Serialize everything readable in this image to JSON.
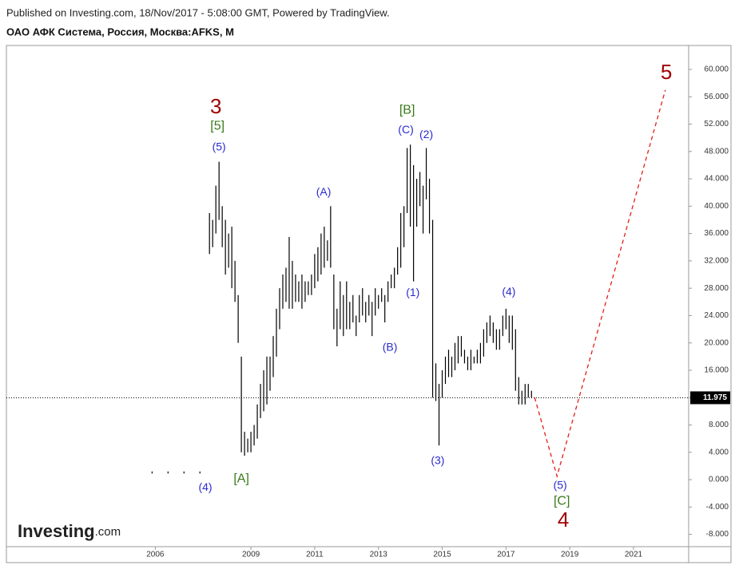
{
  "header": {
    "published": "Published on Investing.com, 18/Nov/2017 - 5:08:00 GMT, Powered by TradingView.",
    "symbol": "ОАО АФК Система, Россия, Москва:AFKS, M"
  },
  "logo": {
    "name": "Investing",
    "suffix": ".com"
  },
  "chart_data": {
    "type": "range_bar",
    "color": "#000000",
    "x": [
      2005.9,
      2006.4,
      2006.9,
      2007.4,
      2007.7,
      2007.8,
      2007.9,
      2008.0,
      2008.1,
      2008.2,
      2008.3,
      2008.4,
      2008.5,
      2008.6,
      2008.7,
      2008.8,
      2008.9,
      2009.0,
      2009.1,
      2009.2,
      2009.3,
      2009.4,
      2009.5,
      2009.6,
      2009.7,
      2009.8,
      2009.9,
      2010.0,
      2010.1,
      2010.2,
      2010.3,
      2010.4,
      2010.5,
      2010.6,
      2010.7,
      2010.8,
      2010.9,
      2011.0,
      2011.1,
      2011.2,
      2011.3,
      2011.4,
      2011.5,
      2011.6,
      2011.7,
      2011.8,
      2011.9,
      2012.0,
      2012.1,
      2012.2,
      2012.3,
      2012.4,
      2012.5,
      2012.6,
      2012.7,
      2012.8,
      2012.9,
      2013.0,
      2013.1,
      2013.2,
      2013.3,
      2013.4,
      2013.5,
      2013.6,
      2013.7,
      2013.8,
      2013.9,
      2014.0,
      2014.1,
      2014.2,
      2014.3,
      2014.4,
      2014.5,
      2014.6,
      2014.7,
      2014.8,
      2014.9,
      2015.0,
      2015.1,
      2015.2,
      2015.3,
      2015.4,
      2015.5,
      2015.6,
      2015.7,
      2015.8,
      2015.9,
      2016.0,
      2016.1,
      2016.2,
      2016.3,
      2016.4,
      2016.5,
      2016.6,
      2016.7,
      2016.8,
      2016.9,
      2017.0,
      2017.1,
      2017.2,
      2017.3,
      2017.4,
      2017.5,
      2017.6,
      2017.7,
      2017.8
    ],
    "high": [
      1.2,
      1.2,
      1.2,
      1.2,
      39,
      38,
      43,
      46.5,
      40,
      38,
      36,
      37,
      32,
      27,
      18,
      7,
      6,
      7,
      8,
      11,
      14,
      16,
      18,
      18,
      21,
      25,
      28,
      30,
      31,
      35.5,
      32,
      30,
      29,
      30,
      29,
      29,
      30,
      33,
      34,
      36,
      37,
      35,
      40,
      30,
      25,
      29,
      27,
      29,
      26,
      27,
      24,
      27,
      28,
      26,
      27,
      26,
      28,
      27,
      28,
      27,
      29,
      30,
      31,
      34,
      39,
      40,
      48.5,
      49,
      46,
      44,
      45,
      43,
      48.5,
      44,
      38,
      17,
      14,
      16,
      18,
      19,
      18,
      20,
      21,
      21,
      19,
      18,
      19,
      18,
      19,
      20,
      22,
      23,
      24,
      23,
      22,
      22,
      24,
      25,
      24,
      24,
      22,
      15,
      13,
      14,
      14,
      13
    ],
    "low": [
      0.9,
      0.9,
      0.9,
      0.9,
      33,
      34,
      36,
      38,
      34,
      30,
      31,
      28,
      26,
      20,
      4,
      3.5,
      4,
      4,
      5,
      6,
      9,
      10,
      11,
      13,
      15,
      18,
      22,
      25,
      26,
      25,
      25,
      26,
      26,
      25,
      26,
      27,
      27,
      28,
      29,
      30,
      31,
      32,
      31,
      22,
      19.5,
      22,
      21,
      22,
      22,
      23,
      21,
      23,
      24,
      23,
      24,
      21,
      24,
      25,
      26,
      23,
      26,
      28,
      28,
      30,
      31,
      34,
      39,
      37,
      29,
      37,
      40,
      36,
      41,
      36,
      12,
      11.5,
      5,
      12,
      14,
      15,
      15,
      16,
      17,
      18,
      17,
      16,
      16,
      17,
      17,
      17,
      18,
      20,
      21,
      20,
      19,
      19,
      21,
      22,
      20,
      19,
      13,
      11,
      11,
      11,
      12,
      12
    ],
    "forecast": {
      "x": [
        2017.9,
        2018.6,
        2022.0
      ],
      "values": [
        12,
        0.5,
        57
      ],
      "color": "#e0201b"
    },
    "last_price": {
      "value": 11.975,
      "label": "11.975"
    },
    "xlim": [
      2001.33,
      2022.73
    ],
    "ylim": [
      -9.8,
      63.5
    ],
    "xticks": [
      2006,
      2009,
      2011,
      2013,
      2015,
      2017,
      2019,
      2021
    ],
    "yticks": [
      {
        "value": -8,
        "label": "-8.000"
      },
      {
        "value": -4,
        "label": "-4.000"
      },
      {
        "value": 0,
        "label": "0.000"
      },
      {
        "value": 4,
        "label": "4.000"
      },
      {
        "value": 8,
        "label": "8.000"
      },
      {
        "value": 12,
        "label": "12.000"
      },
      {
        "value": 16,
        "label": "16.000"
      },
      {
        "value": 20,
        "label": "20.000"
      },
      {
        "value": 24,
        "label": "24.000"
      },
      {
        "value": 28,
        "label": "28.000"
      },
      {
        "value": 32,
        "label": "32.000"
      },
      {
        "value": 36,
        "label": "36.000"
      },
      {
        "value": 40,
        "label": "40.000"
      },
      {
        "value": 44,
        "label": "44.000"
      },
      {
        "value": 48,
        "label": "48.000"
      },
      {
        "value": 52,
        "label": "52.000"
      },
      {
        "value": 56,
        "label": "56.000"
      },
      {
        "value": 60,
        "label": "60.000"
      }
    ],
    "annotations": [
      {
        "text": "3",
        "x": 2007.9,
        "y": 54.4,
        "color": "#a00000"
      },
      {
        "text": "[5]",
        "x": 2007.95,
        "y": 51.7,
        "color": "#3a7a1a"
      },
      {
        "text": "(5)",
        "x": 2008.0,
        "y": 48.6,
        "color": "#2b2bd0"
      },
      {
        "text": "(4)",
        "x": 2007.57,
        "y": -1.2,
        "color": "#2b2bd0"
      },
      {
        "text": "[A]",
        "x": 2008.7,
        "y": 0.1,
        "color": "#3a7a1a"
      },
      {
        "text": "(A)",
        "x": 2011.28,
        "y": 42.0,
        "color": "#2b2bd0"
      },
      {
        "text": "(B)",
        "x": 2013.36,
        "y": 19.3,
        "color": "#2b2bd0"
      },
      {
        "text": "[B]",
        "x": 2013.9,
        "y": 54.0,
        "color": "#3a7a1a"
      },
      {
        "text": "(C)",
        "x": 2013.86,
        "y": 51.1,
        "color": "#2b2bd0"
      },
      {
        "text": "(2)",
        "x": 2014.5,
        "y": 50.4,
        "color": "#2b2bd0"
      },
      {
        "text": "(1)",
        "x": 2014.08,
        "y": 27.3,
        "color": "#2b2bd0"
      },
      {
        "text": "(3)",
        "x": 2014.86,
        "y": 2.7,
        "color": "#2b2bd0"
      },
      {
        "text": "(4)",
        "x": 2017.09,
        "y": 27.4,
        "color": "#2b2bd0"
      },
      {
        "text": "(5)",
        "x": 2018.7,
        "y": -0.9,
        "color": "#2b2bd0"
      },
      {
        "text": "[C]",
        "x": 2018.75,
        "y": -3.2,
        "color": "#3a7a1a"
      },
      {
        "text": "4",
        "x": 2018.8,
        "y": -6.1,
        "color": "#a00000"
      },
      {
        "text": "5",
        "x": 2022.03,
        "y": 59.4,
        "color": "#a00000"
      }
    ]
  }
}
